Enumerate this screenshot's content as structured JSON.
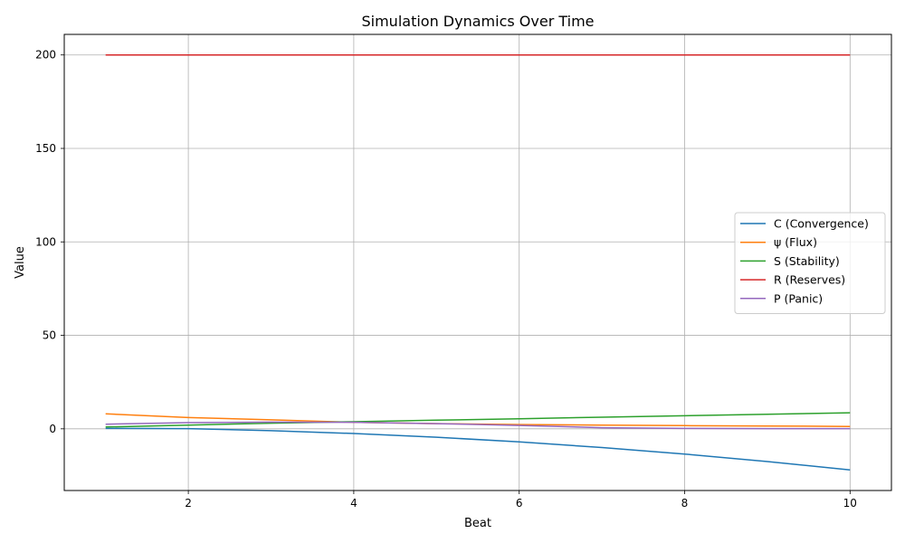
{
  "chart_data": {
    "type": "line",
    "title": "Simulation Dynamics Over Time",
    "xlabel": "Beat",
    "ylabel": "Value",
    "x": [
      1,
      2,
      3,
      4,
      5,
      6,
      7,
      8,
      9,
      10
    ],
    "xlim": [
      0.5,
      10.5
    ],
    "ylim": [
      -33,
      211
    ],
    "xticks": [
      2,
      4,
      6,
      8,
      10
    ],
    "yticks": [
      0,
      50,
      100,
      150,
      200
    ],
    "grid": true,
    "legend_position": "center-right",
    "series": [
      {
        "name": "C (Convergence)",
        "color": "#1f77b4",
        "values": [
          0.2,
          0.1,
          -1.0,
          -2.5,
          -4.5,
          -7.0,
          -10.0,
          -13.5,
          -17.5,
          -22.0
        ]
      },
      {
        "name": "ψ (Flux)",
        "color": "#ff7f0e",
        "values": [
          8.0,
          6.0,
          4.8,
          3.5,
          2.8,
          2.3,
          2.0,
          1.7,
          1.5,
          1.3
        ]
      },
      {
        "name": "S (Stability)",
        "color": "#2ca02c",
        "values": [
          1.0,
          2.0,
          3.0,
          3.8,
          4.6,
          5.4,
          6.2,
          7.0,
          7.8,
          8.6
        ]
      },
      {
        "name": "R (Reserves)",
        "color": "#d62728",
        "values": [
          200,
          200,
          200,
          200,
          200,
          200,
          200,
          200,
          200,
          200
        ]
      },
      {
        "name": "P (Panic)",
        "color": "#9467bd",
        "values": [
          2.5,
          3.3,
          3.6,
          3.5,
          2.8,
          1.8,
          0.6,
          0.2,
          0.1,
          0.1
        ]
      }
    ]
  }
}
